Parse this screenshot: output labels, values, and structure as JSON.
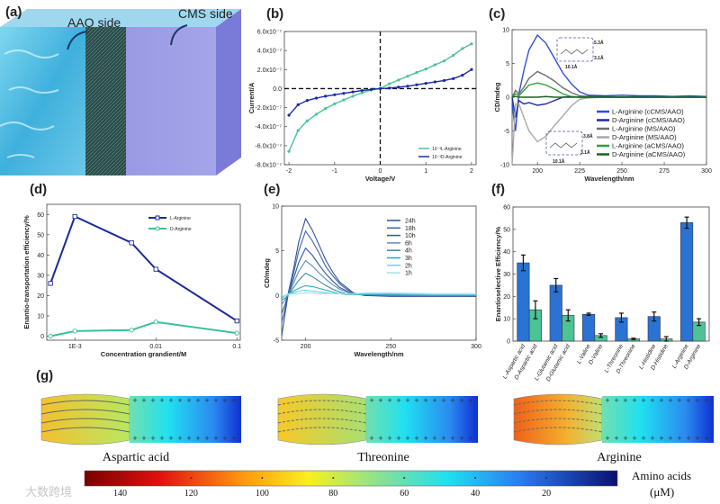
{
  "panel_labels": {
    "a": "(a)",
    "b": "(b)",
    "c": "(c)",
    "d": "(d)",
    "e": "(e)",
    "f": "(f)",
    "g": "(g)"
  },
  "panel_a": {
    "aao_label": "AAO side",
    "cms_label": "CMS side"
  },
  "watermark": "大数跨境",
  "colors": {
    "navy": "#1a2a9a",
    "teal": "#3cbf98",
    "blue": "#2f6fd6",
    "green": "#2e9e3a",
    "darkgreen": "#1f5f1f",
    "gray": "#6e6e6e",
    "lightgray": "#a8a8a8",
    "bar_L": "#2b73d2",
    "bar_D": "#4cc394"
  },
  "chart_data": [
    {
      "id": "b",
      "type": "line",
      "xlabel": "Voltage/V",
      "ylabel": "Current/A",
      "xlim": [
        -2.1,
        2.1
      ],
      "ylim": [
        -8,
        6
      ],
      "y_unit_multiplier": "1e-7",
      "xticks": [
        -2,
        -1,
        0,
        1,
        2
      ],
      "xtick_labels": [
        "-2",
        "-1",
        "0",
        "1",
        "2"
      ],
      "yticks": [
        6,
        4,
        2,
        0,
        -2,
        -4,
        -6,
        -8
      ],
      "ytick_labels": [
        "6.0x10⁻⁷",
        "4.0x10⁻⁷",
        "2.0x10⁻⁷",
        "0.0",
        "-2.0x10⁻⁷",
        "-4.0x10⁻⁷",
        "-6.0x10⁻⁷",
        "-8.0x10⁻⁷"
      ],
      "x": [
        -2,
        -1.8,
        -1.6,
        -1.4,
        -1.2,
        -1,
        -0.8,
        -0.6,
        -0.4,
        -0.2,
        0,
        0.2,
        0.4,
        0.6,
        0.8,
        1,
        1.2,
        1.4,
        1.6,
        1.8,
        2
      ],
      "series": [
        {
          "name": "10⁻³L-Arginine",
          "color": "#4cc394",
          "values": [
            -6.6,
            -4.4,
            -3.4,
            -2.7,
            -2.1,
            -1.6,
            -1.2,
            -0.8,
            -0.45,
            -0.15,
            0,
            0.5,
            0.9,
            1.3,
            1.7,
            2.05,
            2.5,
            2.9,
            3.5,
            4.2,
            4.7
          ]
        },
        {
          "name": "10⁻³D-Arginine",
          "color": "#1a2aa8",
          "values": [
            -2.8,
            -1.7,
            -1.25,
            -1.0,
            -0.8,
            -0.65,
            -0.5,
            -0.35,
            -0.2,
            -0.1,
            0,
            0.05,
            0.15,
            0.25,
            0.4,
            0.55,
            0.7,
            0.85,
            1.05,
            1.4,
            2.0
          ]
        }
      ],
      "legend": "bottom-right"
    },
    {
      "id": "c",
      "type": "line",
      "xlabel": "Wavelength/nm",
      "ylabel": "CD/mdeg",
      "xlim": [
        185,
        300
      ],
      "ylim": [
        -10,
        10
      ],
      "xticks": [
        200,
        225,
        250,
        275,
        300
      ],
      "xtick_labels": [
        "200",
        "225",
        "250",
        "275",
        "300"
      ],
      "yticks": [
        10,
        5,
        0,
        -5,
        -10
      ],
      "ytick_labels": [
        "10",
        "5",
        "0",
        "-5",
        "-10"
      ],
      "x": [
        185,
        187,
        189,
        192,
        195,
        200,
        205,
        210,
        215,
        220,
        225,
        230,
        240,
        250,
        260,
        270,
        280,
        290,
        300
      ],
      "series": [
        {
          "name": "L-Arginine (cCMS/AAO)",
          "color": "#2f4fd6",
          "values": [
            -1,
            -5,
            0.5,
            4,
            7,
            9.2,
            8,
            5.8,
            3.6,
            2,
            0.8,
            0.3,
            0.2,
            0.3,
            0.2,
            0.2,
            0.1,
            0.2,
            0.1
          ]
        },
        {
          "name": "D-Arginine (cCMS/AAO)",
          "color": "#1a2aa8",
          "values": [
            0,
            -3,
            -0.5,
            -1,
            -0.8,
            -1.2,
            -1,
            -0.5,
            0,
            0.1,
            0,
            0.1,
            0.1,
            0,
            0.1,
            0,
            0.1,
            0,
            0
          ]
        },
        {
          "name": "L-Arginine (MS/AAO)",
          "color": "#6e6e6e",
          "values": [
            0,
            1,
            0.5,
            1.5,
            2.8,
            3.8,
            3.2,
            2.4,
            1.4,
            0.7,
            0.2,
            0.1,
            0,
            0,
            0,
            0,
            0,
            0,
            0
          ]
        },
        {
          "name": "D-Arginine (MS/AAO)",
          "color": "#a8a8a8",
          "values": [
            -10,
            -1,
            -1,
            -3,
            -5,
            -6.6,
            -5.8,
            -4.2,
            -2.8,
            -1.3,
            -0.3,
            -0.1,
            0,
            0,
            0,
            0,
            0,
            0,
            0
          ]
        },
        {
          "name": "L-Arginine (aCMS/AAO)",
          "color": "#2e9e3a",
          "values": [
            0,
            0.5,
            0.2,
            1,
            1.8,
            2.1,
            1.8,
            1.2,
            0.5,
            0.1,
            0,
            0,
            0,
            0,
            0,
            0,
            0,
            0,
            0
          ]
        },
        {
          "name": "D-Arginine (aCMS/AAO)",
          "color": "#1f5f1f",
          "values": [
            0,
            0.1,
            0,
            0,
            0,
            0,
            0.1,
            0,
            0,
            0,
            0,
            0,
            0,
            0,
            0,
            0,
            0,
            0,
            0
          ]
        }
      ],
      "annotations": [
        "5.3Å",
        "3.1Å",
        "10.1Å",
        "3.8Å",
        "3.1Å",
        "10.1Å"
      ],
      "legend": "bottom-right"
    },
    {
      "id": "d",
      "type": "line",
      "xscale": "log",
      "xlabel": "Concentration grandient/M",
      "ylabel": "Enantio-transportation efficiency/%",
      "xlim": [
        0.00045,
        0.11
      ],
      "ylim": [
        -2,
        65
      ],
      "xticks": [
        0.001,
        0.01,
        0.1
      ],
      "xtick_labels": [
        "1E-3",
        "0.01",
        "0.1"
      ],
      "yticks": [
        0,
        10,
        20,
        30,
        40,
        50,
        60
      ],
      "ytick_labels": [
        "0",
        "10",
        "20",
        "30",
        "40",
        "50",
        "60"
      ],
      "x": [
        0.0005,
        0.001,
        0.005,
        0.01,
        0.1
      ],
      "series": [
        {
          "name": "L-Arginine",
          "color": "#1a2a9a",
          "marker": "square",
          "values": [
            26,
            59,
            46,
            33,
            7.5
          ]
        },
        {
          "name": "D-Arginine",
          "color": "#3cbf98",
          "marker": "circle",
          "values": [
            0,
            2.5,
            3,
            7,
            1.5
          ]
        }
      ],
      "legend": "top-right"
    },
    {
      "id": "e",
      "type": "line",
      "xlabel": "Wavelength/nm",
      "ylabel": "CD/mdeg",
      "xlim": [
        186,
        300
      ],
      "ylim": [
        -5,
        10
      ],
      "xticks": [
        200,
        250,
        300
      ],
      "xtick_labels": [
        "200",
        "250",
        "300"
      ],
      "yticks": [
        10,
        5,
        0,
        -5
      ],
      "ytick_labels": [
        "10",
        "5",
        "0",
        "-5"
      ],
      "x": [
        186,
        188,
        190,
        193,
        196,
        200,
        204,
        208,
        212,
        216,
        220,
        224,
        228,
        235,
        250,
        275,
        300
      ],
      "series": [
        {
          "name": "24h",
          "color": "#2f4f9a",
          "values": [
            -4.5,
            -2,
            0.4,
            3,
            6,
            8.6,
            7.3,
            5.6,
            3.9,
            2.6,
            1.5,
            0.9,
            0.3,
            0,
            -0.1,
            -0.1,
            -0.1
          ]
        },
        {
          "name": "18h",
          "color": "#3c62b0",
          "values": [
            -3,
            -1.5,
            0.3,
            2.5,
            5,
            7.2,
            6.1,
            4.7,
            3.2,
            2.2,
            1.3,
            0.7,
            0.3,
            0,
            0,
            0,
            0
          ]
        },
        {
          "name": "10h",
          "color": "#2c5a9c",
          "values": [
            -2,
            -1,
            0.2,
            1.9,
            3.7,
            5.3,
            4.5,
            3.4,
            2.4,
            1.6,
            0.9,
            0.5,
            0.2,
            0,
            0,
            0,
            0
          ]
        },
        {
          "name": "6h",
          "color": "#5d8cbc",
          "values": [
            -1,
            -0.5,
            0.1,
            1.4,
            2.7,
            3.9,
            3.3,
            2.5,
            1.8,
            1.2,
            0.7,
            0.4,
            0.1,
            0.1,
            0,
            0,
            0
          ]
        },
        {
          "name": "4h",
          "color": "#3a8a9e",
          "values": [
            -0.5,
            -0.3,
            0.1,
            0.9,
            1.7,
            2.5,
            2.1,
            1.6,
            1.1,
            0.7,
            0.4,
            0.2,
            0.1,
            0.1,
            0.1,
            0,
            0
          ]
        },
        {
          "name": "3h",
          "color": "#2aaabf",
          "values": [
            -0.3,
            0,
            0.2,
            0.5,
            0.8,
            1.1,
            1,
            0.8,
            0.6,
            0.4,
            0.2,
            0.1,
            0.1,
            0.1,
            0.1,
            0,
            0
          ]
        },
        {
          "name": "2h",
          "color": "#6ad0e2",
          "values": [
            -0.2,
            0,
            0.2,
            0.3,
            0.5,
            0.6,
            0.5,
            0.4,
            0.3,
            0.2,
            0.2,
            0.1,
            0.1,
            0.2,
            0.2,
            0.1,
            0.1
          ]
        },
        {
          "name": "1h",
          "color": "#9fe2ef",
          "values": [
            0,
            0,
            0.1,
            0.2,
            0.2,
            0.3,
            0.3,
            0.2,
            0.2,
            0.2,
            0.2,
            0.2,
            0.2,
            0.3,
            0.3,
            0.2,
            0.2
          ]
        }
      ],
      "legend": "top-right"
    },
    {
      "id": "f",
      "type": "bar",
      "ylabel": "Enantioselective Efficiency/%",
      "ylim": [
        0,
        60
      ],
      "yticks": [
        0,
        10,
        20,
        30,
        40,
        50,
        60
      ],
      "ytick_labels": [
        "0",
        "10",
        "20",
        "30",
        "40",
        "50",
        "60"
      ],
      "categories": [
        "L-Aspartic acid",
        "D-Aspartic acid",
        "L-Glutamic acid",
        "D-Glutamic acid",
        "L-Valine",
        "D-Valine",
        "L-Threonine",
        "D-Threonine",
        "L-Histidine",
        "D-Histidine",
        "L-Arginine",
        "D-Arginine"
      ],
      "values": [
        35,
        14,
        25,
        11.5,
        12,
        2.5,
        10.5,
        1,
        11,
        1,
        53,
        8.5
      ],
      "errors": [
        3.5,
        4,
        3,
        2.5,
        0.5,
        0.8,
        2,
        0.3,
        2,
        1,
        2.5,
        1.5
      ]
    },
    {
      "id": "g",
      "type": "heatmap",
      "colorbar_title": "Amino acids",
      "colorbar_unit": "(μM)",
      "colorbar_ticks": [
        140,
        120,
        100,
        80,
        60,
        40,
        20
      ],
      "colorbar_tick_labels": [
        "140",
        "120",
        "100",
        "80",
        "60",
        "40",
        "20"
      ],
      "panels": [
        {
          "name": "Aspartic acid",
          "membrane_value": 100,
          "reservoir_range": [
            70,
            10
          ]
        },
        {
          "name": "Threonine",
          "membrane_value": 105,
          "reservoir_range": [
            70,
            10
          ]
        },
        {
          "name": "Arginine",
          "membrane_value": 125,
          "reservoir_range": [
            75,
            10
          ]
        }
      ]
    }
  ]
}
